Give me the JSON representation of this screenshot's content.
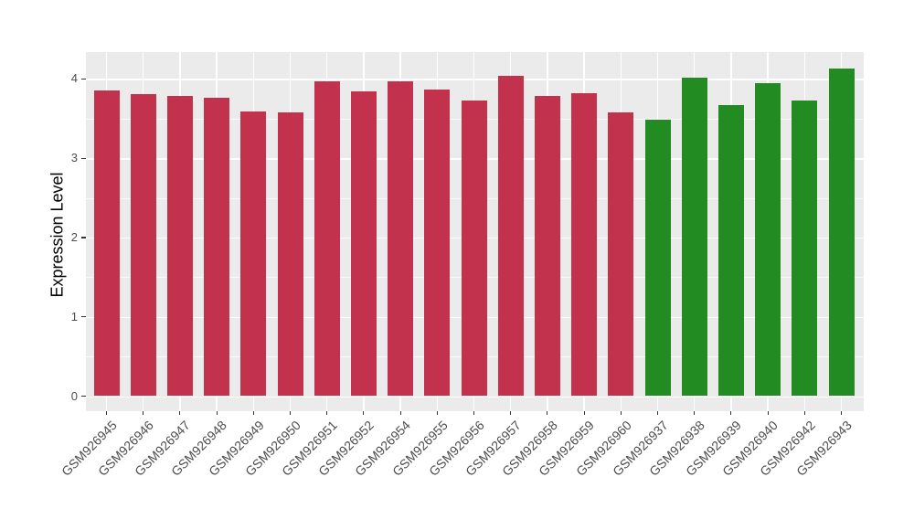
{
  "chart_data": {
    "type": "bar",
    "title": "",
    "xlabel": "",
    "ylabel": "Expression Level",
    "yticks": [
      0,
      1,
      2,
      3,
      4
    ],
    "ylim": [
      -0.17,
      4.33
    ],
    "grid": "major horizontal at integers, minor at halves, vertical at each bar center; white lines on gray panel",
    "legend_position": "none",
    "panel_background": "#EBEBEB",
    "gridline_color": "#FFFFFF",
    "axis_text_color": "#4D4D4D",
    "axis_title_color": "#000000",
    "group_colors": {
      "control_red": "#C3324C",
      "treatment_green": "#228B22"
    },
    "categories": [
      "GSM926945",
      "GSM926946",
      "GSM926947",
      "GSM926948",
      "GSM926949",
      "GSM926950",
      "GSM926951",
      "GSM926952",
      "GSM926954",
      "GSM926955",
      "GSM926956",
      "GSM926957",
      "GSM926958",
      "GSM926959",
      "GSM926960",
      "GSM926937",
      "GSM926938",
      "GSM926939",
      "GSM926940",
      "GSM926942",
      "GSM926943"
    ],
    "values": [
      3.85,
      3.81,
      3.78,
      3.76,
      3.59,
      3.58,
      3.97,
      3.84,
      3.97,
      3.86,
      3.73,
      4.04,
      3.79,
      3.82,
      3.58,
      3.49,
      4.01,
      3.67,
      3.95,
      3.73,
      4.13
    ],
    "bar_colors": [
      "#C3324C",
      "#C3324C",
      "#C3324C",
      "#C3324C",
      "#C3324C",
      "#C3324C",
      "#C3324C",
      "#C3324C",
      "#C3324C",
      "#C3324C",
      "#C3324C",
      "#C3324C",
      "#C3324C",
      "#C3324C",
      "#C3324C",
      "#228B22",
      "#228B22",
      "#228B22",
      "#228B22",
      "#228B22",
      "#228B22"
    ]
  }
}
